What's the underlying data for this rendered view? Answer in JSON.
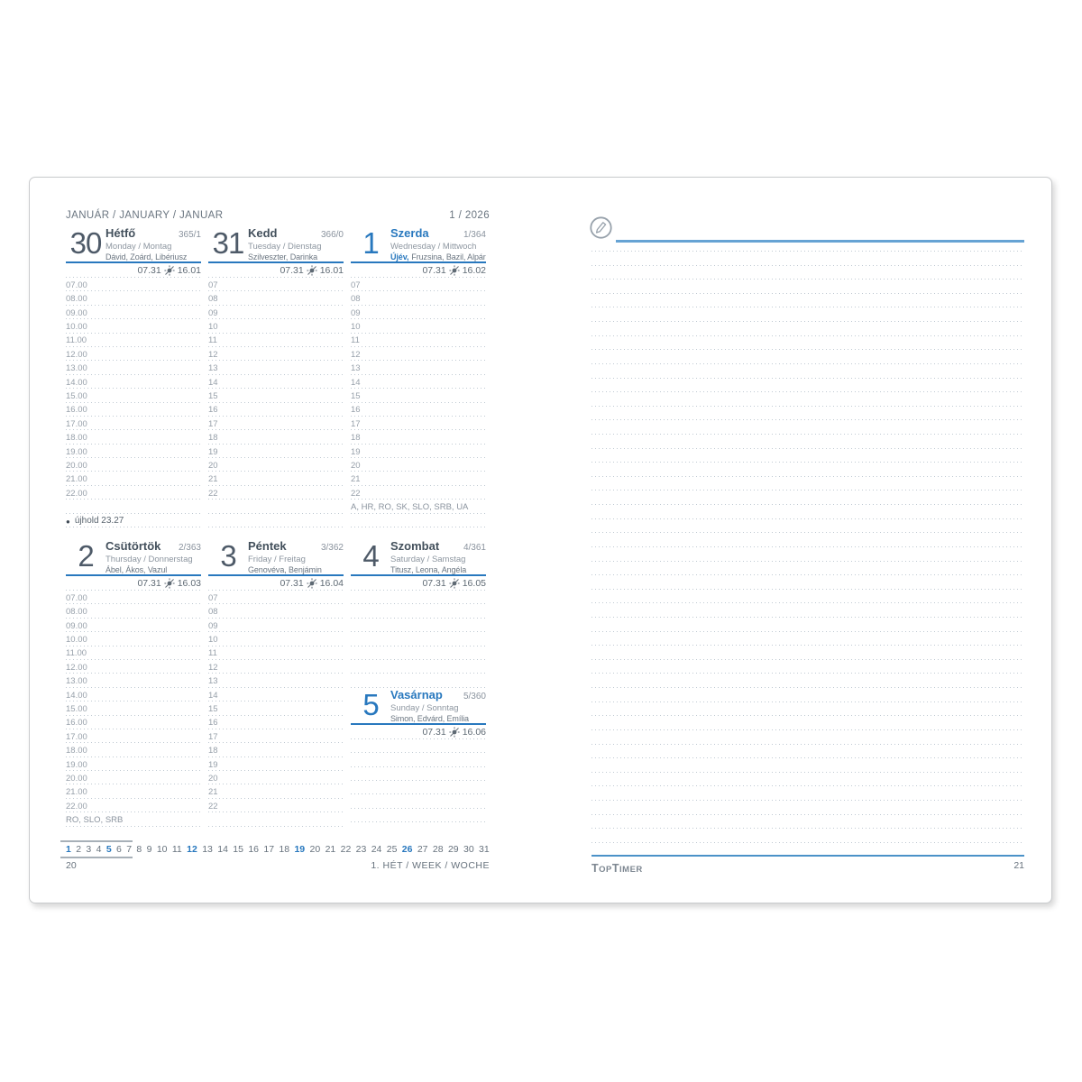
{
  "colors": {
    "accent": "#2878be",
    "dotted": "#bfc9d2",
    "top_line": "#66a3d4",
    "bottom_line": "#4b92c8"
  },
  "left": {
    "month_title": "JANUÁR / JANUARY / JANUAR",
    "week_of_year": "1 / 2026",
    "page_number": "20",
    "week_label": "1. HÉT / WEEK / WOCHE",
    "moon_bullet": "●",
    "moon_note": "újhold 23.27",
    "hours_full": [
      "07.00",
      "08.00",
      "09.00",
      "10.00",
      "11.00",
      "12.00",
      "13.00",
      "14.00",
      "15.00",
      "16.00",
      "17.00",
      "18.00",
      "19.00",
      "20.00",
      "21.00",
      "22.00"
    ],
    "hours_short": [
      "07",
      "08",
      "09",
      "10",
      "11",
      "12",
      "13",
      "14",
      "15",
      "16",
      "17",
      "18",
      "19",
      "20",
      "21",
      "22"
    ],
    "days": [
      {
        "num": "30",
        "name": "Hétfő",
        "sub": "Monday / Montag",
        "holiday": "",
        "names": "Dávid, Zoárd, Libériusz",
        "doy": "365/1",
        "sunrise": "07.31",
        "sunset": "16.01"
      },
      {
        "num": "31",
        "name": "Kedd",
        "sub": "Tuesday / Dienstag",
        "holiday": "",
        "names": "Szilveszter, Darinka",
        "doy": "366/0",
        "sunrise": "07.31",
        "sunset": "16.01"
      },
      {
        "num": "1",
        "name": "Szerda",
        "sub": "Wednesday / Mittwoch",
        "holiday": "Újév,",
        "names": "Fruzsina, Bazil, Alpár",
        "doy": "1/364",
        "sunrise": "07.31",
        "sunset": "16.02",
        "note": "A, HR, RO, SK, SLO, SRB, UA"
      },
      {
        "num": "2",
        "name": "Csütörtök",
        "sub": "Thursday / Donnerstag",
        "holiday": "",
        "names": "Ábel, Ákos, Vazul",
        "doy": "2/363",
        "sunrise": "07.31",
        "sunset": "16.03",
        "note": "RO, SLO, SRB"
      },
      {
        "num": "3",
        "name": "Péntek",
        "sub": "Friday / Freitag",
        "holiday": "",
        "names": "Genovéva, Benjámin",
        "doy": "3/362",
        "sunrise": "07.31",
        "sunset": "16.04"
      },
      {
        "num": "4",
        "name": "Szombat",
        "sub": "Saturday / Samstag",
        "holiday": "",
        "names": "Titusz, Leona, Angéla",
        "doy": "4/361",
        "sunrise": "07.31",
        "sunset": "16.05"
      },
      {
        "num": "5",
        "name": "Vasárnap",
        "sub": "Sunday / Sonntag",
        "holiday": "",
        "names": "Simon, Edvárd, Emília",
        "doy": "5/360",
        "sunrise": "07.31",
        "sunset": "16.06"
      }
    ],
    "month_days": [
      "1",
      "2",
      "3",
      "4",
      "5",
      "6",
      "7",
      "8",
      "9",
      "10",
      "11",
      "12",
      "13",
      "14",
      "15",
      "16",
      "17",
      "18",
      "19",
      "20",
      "21",
      "22",
      "23",
      "24",
      "25",
      "26",
      "27",
      "28",
      "29",
      "30",
      "31"
    ],
    "highlighted_days": [
      "1",
      "5",
      "12",
      "19",
      "26"
    ]
  },
  "right": {
    "page_number": "21",
    "brand": {
      "t1": "T",
      "s1": "OP",
      "t2": "T",
      "s2": "IMER"
    }
  }
}
